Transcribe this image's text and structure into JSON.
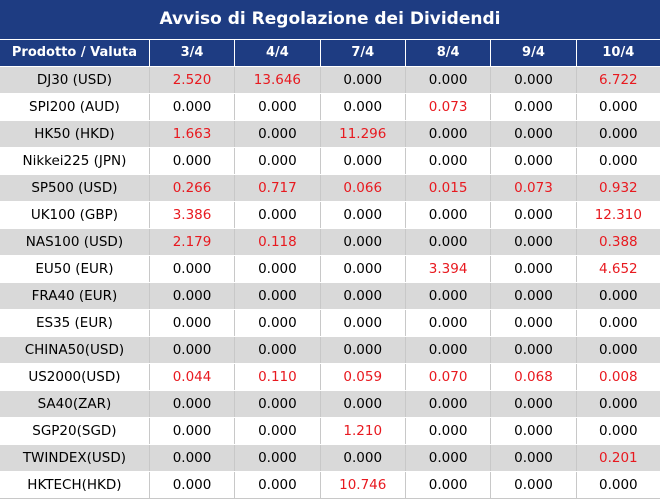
{
  "title": "Avviso di Regolazione dei Dividendi",
  "header": [
    "Prodotto / Valuta",
    "3/4",
    "4/4",
    "7/4",
    "8/4",
    "9/4",
    "10/4"
  ],
  "rows": [
    {
      "product": "DJ30 (USD)",
      "values": [
        "2.520",
        "13.646",
        "0.000",
        "0.000",
        "0.000",
        "6.722"
      ]
    },
    {
      "product": "SPI200 (AUD)",
      "values": [
        "0.000",
        "0.000",
        "0.000",
        "0.073",
        "0.000",
        "0.000"
      ]
    },
    {
      "product": "HK50 (HKD)",
      "values": [
        "1.663",
        "0.000",
        "11.296",
        "0.000",
        "0.000",
        "0.000"
      ]
    },
    {
      "product": "Nikkei225 (JPN)",
      "values": [
        "0.000",
        "0.000",
        "0.000",
        "0.000",
        "0.000",
        "0.000"
      ]
    },
    {
      "product": "SP500 (USD)",
      "values": [
        "0.266",
        "0.717",
        "0.066",
        "0.015",
        "0.073",
        "0.932"
      ]
    },
    {
      "product": "UK100 (GBP)",
      "values": [
        "3.386",
        "0.000",
        "0.000",
        "0.000",
        "0.000",
        "12.310"
      ]
    },
    {
      "product": "NAS100 (USD)",
      "values": [
        "2.179",
        "0.118",
        "0.000",
        "0.000",
        "0.000",
        "0.388"
      ]
    },
    {
      "product": "EU50 (EUR)",
      "values": [
        "0.000",
        "0.000",
        "0.000",
        "3.394",
        "0.000",
        "4.652"
      ]
    },
    {
      "product": "FRA40 (EUR)",
      "values": [
        "0.000",
        "0.000",
        "0.000",
        "0.000",
        "0.000",
        "0.000"
      ]
    },
    {
      "product": "ES35 (EUR)",
      "values": [
        "0.000",
        "0.000",
        "0.000",
        "0.000",
        "0.000",
        "0.000"
      ]
    },
    {
      "product": "CHINA50(USD)",
      "values": [
        "0.000",
        "0.000",
        "0.000",
        "0.000",
        "0.000",
        "0.000"
      ]
    },
    {
      "product": "US2000(USD)",
      "values": [
        "0.044",
        "0.110",
        "0.059",
        "0.070",
        "0.068",
        "0.008"
      ]
    },
    {
      "product": "SA40(ZAR)",
      "values": [
        "0.000",
        "0.000",
        "0.000",
        "0.000",
        "0.000",
        "0.000"
      ]
    },
    {
      "product": "SGP20(SGD)",
      "values": [
        "0.000",
        "0.000",
        "1.210",
        "0.000",
        "0.000",
        "0.000"
      ]
    },
    {
      "product": "TWINDEX(USD)",
      "values": [
        "0.000",
        "0.000",
        "0.000",
        "0.000",
        "0.000",
        "0.201"
      ]
    },
    {
      "product": "HKTECH(HKD)",
      "values": [
        "0.000",
        "0.000",
        "10.746",
        "0.000",
        "0.000",
        "0.000"
      ]
    }
  ],
  "colors": {
    "header_bg": "#1e3c82",
    "nonzero_text": "#e8191f",
    "zero_text": "#000000",
    "stripe": "#d9d9d9"
  }
}
